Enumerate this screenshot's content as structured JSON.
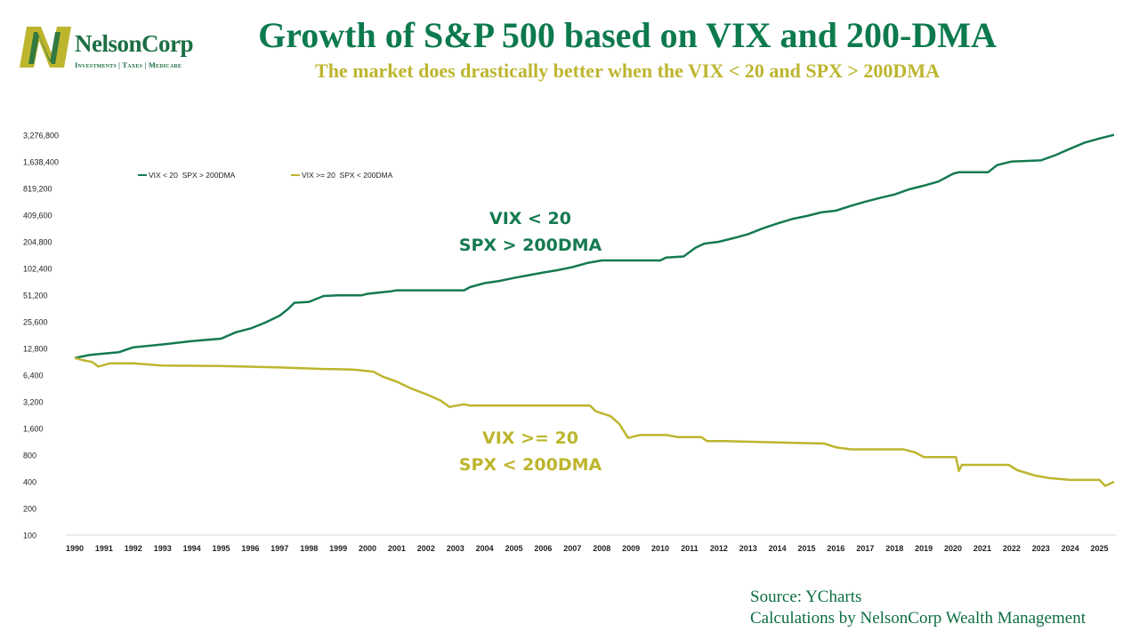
{
  "header": {
    "logo_name": "NelsonCorp",
    "logo_tagline": "Investments | Taxes | Medicare",
    "title": "Growth of S&P 500 based on VIX and 200-DMA",
    "subtitle": "The market does drastically better when the VIX < 20 and SPX > 200DMA"
  },
  "colors": {
    "green": "#157a50",
    "olive": "#bdb52e"
  },
  "chart_data": {
    "type": "line",
    "title": "Growth of S&P 500 based on VIX and 200-DMA",
    "xlabel": "",
    "ylabel": "",
    "y_scale": "log2",
    "ylim": [
      100,
      3276800
    ],
    "xlim": [
      1990,
      2025.5
    ],
    "grid": false,
    "legend_position": "top-left",
    "y_ticks": [
      "3,276,800",
      "1,638,400",
      "819,200",
      "409,600",
      "204,800",
      "102,400",
      "51,200",
      "25,600",
      "12,800",
      "6,400",
      "3,200",
      "1,600",
      "800",
      "400",
      "200",
      "100"
    ],
    "x_ticks": [
      "1990",
      "1991",
      "1992",
      "1993",
      "1994",
      "1995",
      "1996",
      "1997",
      "1998",
      "1999",
      "2000",
      "2001",
      "2002",
      "2003",
      "2004",
      "2005",
      "2006",
      "2007",
      "2008",
      "2009",
      "2010",
      "2011",
      "2012",
      "2013",
      "2014",
      "2015",
      "2016",
      "2017",
      "2018",
      "2019",
      "2020",
      "2021",
      "2022",
      "2023",
      "2024",
      "2025"
    ],
    "series": [
      {
        "name": "VIX < 20  SPX > 200DMA",
        "annotation": [
          "VIX < 20",
          "SPX > 200DMA"
        ],
        "color": "#157a50",
        "points": [
          [
            1990.0,
            10000
          ],
          [
            1990.5,
            10800
          ],
          [
            1991.0,
            11200
          ],
          [
            1991.5,
            11600
          ],
          [
            1992.0,
            13200
          ],
          [
            1993.0,
            14200
          ],
          [
            1994.0,
            15500
          ],
          [
            1995.0,
            16500
          ],
          [
            1995.5,
            19500
          ],
          [
            1996.0,
            21500
          ],
          [
            1996.5,
            25000
          ],
          [
            1997.0,
            30000
          ],
          [
            1997.3,
            36000
          ],
          [
            1997.5,
            42000
          ],
          [
            1998.0,
            43000
          ],
          [
            1998.5,
            50000
          ],
          [
            1999.0,
            51000
          ],
          [
            1999.8,
            51000
          ],
          [
            2000.0,
            53000
          ],
          [
            2000.8,
            56500
          ],
          [
            2001.0,
            58000
          ],
          [
            2003.3,
            58000
          ],
          [
            2003.5,
            63000
          ],
          [
            2004.0,
            70000
          ],
          [
            2004.5,
            74000
          ],
          [
            2005.0,
            80000
          ],
          [
            2005.5,
            86000
          ],
          [
            2006.0,
            92000
          ],
          [
            2006.5,
            98000
          ],
          [
            2007.0,
            106000
          ],
          [
            2007.5,
            118000
          ],
          [
            2008.0,
            126000
          ],
          [
            2010.0,
            126000
          ],
          [
            2010.2,
            136000
          ],
          [
            2010.8,
            140000
          ],
          [
            2011.2,
            175000
          ],
          [
            2011.5,
            195000
          ],
          [
            2012.0,
            205000
          ],
          [
            2012.5,
            225000
          ],
          [
            2013.0,
            250000
          ],
          [
            2013.5,
            290000
          ],
          [
            2014.0,
            330000
          ],
          [
            2014.5,
            370000
          ],
          [
            2015.0,
            400000
          ],
          [
            2015.5,
            440000
          ],
          [
            2016.0,
            460000
          ],
          [
            2016.5,
            520000
          ],
          [
            2017.0,
            580000
          ],
          [
            2017.5,
            640000
          ],
          [
            2018.0,
            700000
          ],
          [
            2018.5,
            800000
          ],
          [
            2019.0,
            880000
          ],
          [
            2019.5,
            980000
          ],
          [
            2020.0,
            1200000
          ],
          [
            2020.2,
            1250000
          ],
          [
            2021.2,
            1250000
          ],
          [
            2021.5,
            1500000
          ],
          [
            2022.0,
            1650000
          ],
          [
            2023.0,
            1700000
          ],
          [
            2023.5,
            1950000
          ],
          [
            2024.0,
            2300000
          ],
          [
            2024.5,
            2700000
          ],
          [
            2025.0,
            3000000
          ],
          [
            2025.5,
            3300000
          ]
        ]
      },
      {
        "name": "VIX >= 20  SPX < 200DMA",
        "annotation": [
          "VIX >= 20",
          "SPX < 200DMA"
        ],
        "color": "#bdb52e",
        "points": [
          [
            1990.0,
            10000
          ],
          [
            1990.3,
            9400
          ],
          [
            1990.6,
            9000
          ],
          [
            1990.8,
            8000
          ],
          [
            1991.0,
            8300
          ],
          [
            1991.2,
            8700
          ],
          [
            1992.0,
            8700
          ],
          [
            1993.0,
            8200
          ],
          [
            1995.0,
            8100
          ],
          [
            1997.0,
            7800
          ],
          [
            1998.5,
            7500
          ],
          [
            1999.5,
            7400
          ],
          [
            2000.2,
            7000
          ],
          [
            2000.5,
            6200
          ],
          [
            2001.0,
            5400
          ],
          [
            2001.5,
            4500
          ],
          [
            2002.0,
            3900
          ],
          [
            2002.5,
            3300
          ],
          [
            2002.8,
            2800
          ],
          [
            2003.3,
            3000
          ],
          [
            2003.5,
            2900
          ],
          [
            2007.6,
            2900
          ],
          [
            2007.8,
            2500
          ],
          [
            2008.3,
            2200
          ],
          [
            2008.6,
            1800
          ],
          [
            2008.9,
            1250
          ],
          [
            2009.3,
            1350
          ],
          [
            2010.2,
            1350
          ],
          [
            2010.6,
            1280
          ],
          [
            2011.4,
            1280
          ],
          [
            2011.6,
            1150
          ],
          [
            2012.2,
            1150
          ],
          [
            2015.6,
            1080
          ],
          [
            2016.0,
            980
          ],
          [
            2016.5,
            930
          ],
          [
            2018.3,
            930
          ],
          [
            2018.7,
            860
          ],
          [
            2019.0,
            760
          ],
          [
            2020.1,
            760
          ],
          [
            2020.2,
            530
          ],
          [
            2020.3,
            620
          ],
          [
            2021.9,
            620
          ],
          [
            2022.2,
            540
          ],
          [
            2022.8,
            470
          ],
          [
            2023.3,
            440
          ],
          [
            2024.0,
            420
          ],
          [
            2025.0,
            420
          ],
          [
            2025.2,
            360
          ],
          [
            2025.5,
            400
          ]
        ]
      }
    ]
  },
  "footer": {
    "source": "Source: YCharts",
    "calculations": "Calculations by NelsonCorp Wealth Management"
  }
}
